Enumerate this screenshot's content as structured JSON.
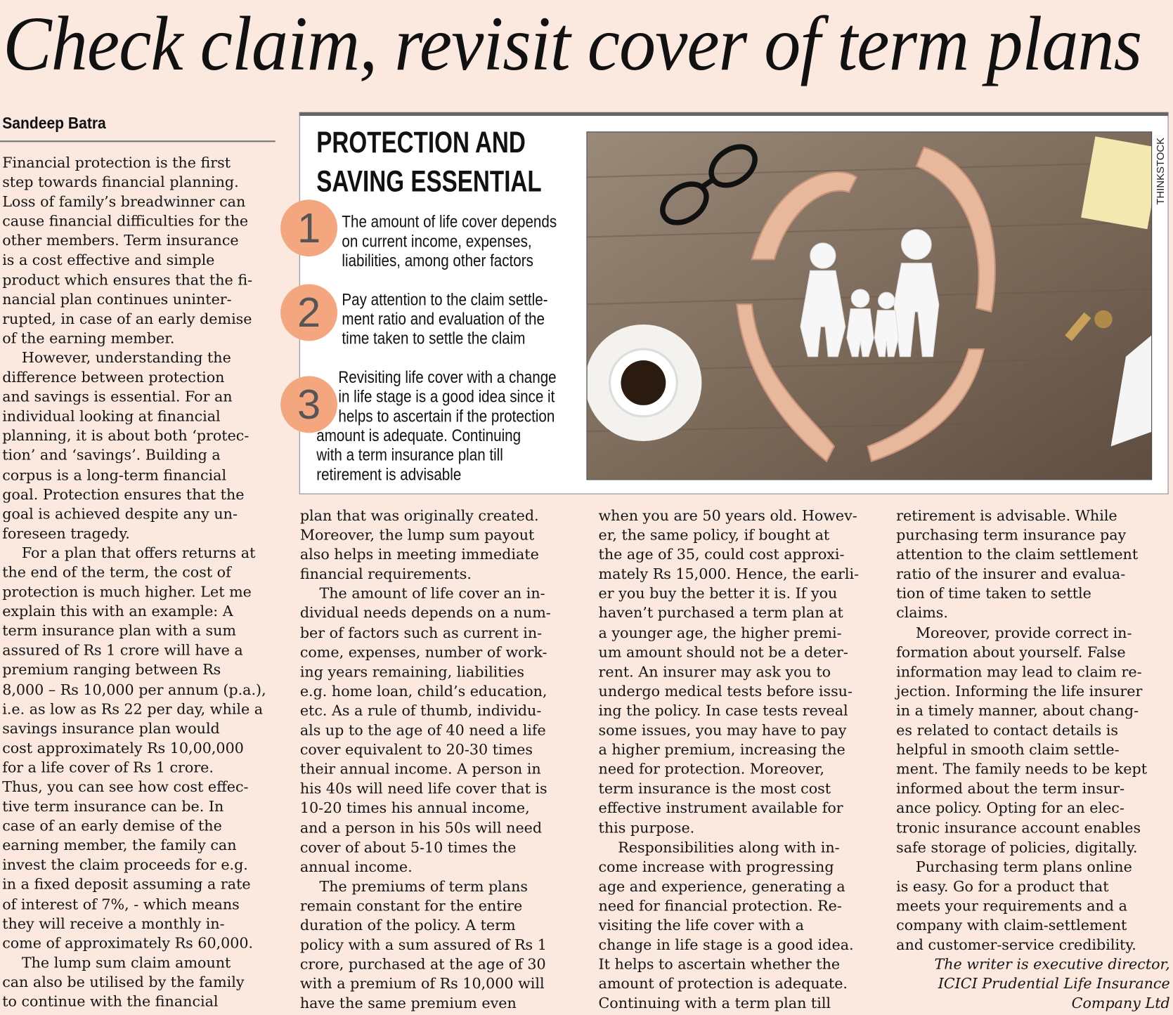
{
  "headline": "Check claim, revisit cover of term plans",
  "byline": "Sandeep Batra",
  "infobox": {
    "heading_lines": [
      "PROTECTION  AND",
      "SAVING ESSENTIAL"
    ],
    "accent_color": "#f4a77f",
    "items": [
      {
        "number": "1",
        "lines": [
          "The amount of life cover depends",
          "on current income, expenses,",
          "liabilities, among other factors"
        ]
      },
      {
        "number": "2",
        "lines": [
          "Pay attention to the claim settle-",
          "ment ratio and evaluation of the",
          "time taken to settle the claim"
        ]
      },
      {
        "number": "3",
        "lines": [
          "Revisiting life cover with a change",
          " in life stage is a good idea since it",
          " helps to ascertain if the protection",
          "amount is adequate. Continuing",
          "with a term insurance plan till",
          "retirement is advisable"
        ]
      }
    ],
    "photo_credit": "THINKSTOCK"
  },
  "columns": [
    [
      {
        "t": "Financial protection is the first"
      },
      {
        "t": "step towards financial planning."
      },
      {
        "t": "Loss of family’s breadwinner can"
      },
      {
        "t": "cause financial difficulties for the"
      },
      {
        "t": "other members. Term insurance"
      },
      {
        "t": "is a cost effective and simple"
      },
      {
        "t": "product which ensures that the fi-"
      },
      {
        "t": "nancial plan continues uninter-"
      },
      {
        "t": "rupted, in case of  an early demise"
      },
      {
        "t": "of  the earning member."
      },
      {
        "t": "However, understanding the",
        "i": true
      },
      {
        "t": "difference between protection"
      },
      {
        "t": "and savings is essential. For an"
      },
      {
        "t": "individual looking at financial"
      },
      {
        "t": "planning, it is about both ‘protec-"
      },
      {
        "t": "tion’ and ‘savings’. Building a"
      },
      {
        "t": "corpus is a long-term financial"
      },
      {
        "t": "goal. Protection ensures that the"
      },
      {
        "t": "goal is achieved despite any un-"
      },
      {
        "t": "foreseen tragedy."
      },
      {
        "t": "For a plan that offers returns at",
        "i": true
      },
      {
        "t": "the end of  the term, the cost of"
      },
      {
        "t": "protection is much higher. Let me"
      },
      {
        "t": "explain this with an example: A"
      },
      {
        "t": "term insurance plan with a sum"
      },
      {
        "t": "assured of  Rs 1 crore will have a"
      },
      {
        "t": "premium ranging between Rs"
      },
      {
        "t": "8,000 – Rs 10,000 per annum (p.a.),"
      },
      {
        "t": "i.e. as low as Rs 22 per day, while a"
      },
      {
        "t": "savings insurance plan would"
      },
      {
        "t": "cost approximately Rs 10,00,000"
      },
      {
        "t": "for a life cover of  Rs 1 crore."
      },
      {
        "t": "Thus, you can see how cost effec-"
      },
      {
        "t": "tive term insurance can be. In"
      },
      {
        "t": "case of  an early demise of  the"
      },
      {
        "t": "earning member, the family can"
      },
      {
        "t": "invest the claim proceeds for e.g."
      },
      {
        "t": "in a fixed deposit assuming a rate"
      },
      {
        "t": "of  interest of  7%, - which means"
      },
      {
        "t": "they will receive a monthly in-"
      },
      {
        "t": "come of  approximately Rs 60,000."
      },
      {
        "t": "The lump sum claim amount",
        "i": true
      },
      {
        "t": "can also be utilised by the family"
      },
      {
        "t": "to continue with the financial"
      }
    ],
    [
      {
        "t": "plan that was originally created."
      },
      {
        "t": "Moreover, the lump sum payout"
      },
      {
        "t": "also helps in meeting immediate"
      },
      {
        "t": "financial requirements."
      },
      {
        "t": "The amount of life cover an in-",
        "i": true
      },
      {
        "t": "dividual needs depends on a num-"
      },
      {
        "t": "ber of factors such as current in-"
      },
      {
        "t": "come, expenses, number of  work-"
      },
      {
        "t": "ing years remaining, liabilities"
      },
      {
        "t": "e.g. home loan, child’s education,"
      },
      {
        "t": "etc. As a rule of  thumb, individu-"
      },
      {
        "t": "als up to the age of  40 need a life"
      },
      {
        "t": "cover equivalent to 20-30 times"
      },
      {
        "t": "their annual income. A person in"
      },
      {
        "t": "his 40s will need life cover that is"
      },
      {
        "t": "10-20 times his annual income,"
      },
      {
        "t": "and a person in his 50s will need"
      },
      {
        "t": "cover of  about 5-10 times the"
      },
      {
        "t": "annual income."
      },
      {
        "t": "The premiums of  term plans",
        "i": true
      },
      {
        "t": "remain constant for the entire"
      },
      {
        "t": "duration of  the policy. A term"
      },
      {
        "t": "policy with a sum assured of  Rs 1"
      },
      {
        "t": "crore, purchased at the age of  30"
      },
      {
        "t": "with a premium of  Rs 10,000 will"
      },
      {
        "t": "have the same premium even"
      }
    ],
    [
      {
        "t": "when you are 50 years old. Howev-"
      },
      {
        "t": "er, the same policy, if  bought at"
      },
      {
        "t": "the age of  35, could cost approxi-"
      },
      {
        "t": "mately Rs 15,000. Hence, the earli-"
      },
      {
        "t": "er you buy the better it is. If  you"
      },
      {
        "t": "haven’t purchased a term plan at"
      },
      {
        "t": "a younger age, the higher premi-"
      },
      {
        "t": "um amount should not be a deter-"
      },
      {
        "t": "rent. An insurer may ask you to"
      },
      {
        "t": "undergo medical tests before issu-"
      },
      {
        "t": "ing the policy. In case tests reveal"
      },
      {
        "t": "some issues, you may have to pay"
      },
      {
        "t": "a higher premium, increasing the"
      },
      {
        "t": "need for protection. Moreover,"
      },
      {
        "t": "term insurance is the most cost"
      },
      {
        "t": "effective instrument available for"
      },
      {
        "t": "this purpose."
      },
      {
        "t": "Responsibilities along with in-",
        "i": true
      },
      {
        "t": "come increase with progressing"
      },
      {
        "t": "age and experience, generating a"
      },
      {
        "t": "need for financial protection. Re-"
      },
      {
        "t": "visiting the life cover with a"
      },
      {
        "t": "change in life stage is a good idea."
      },
      {
        "t": "It helps to ascertain whether the"
      },
      {
        "t": "amount of  protection is adequate."
      },
      {
        "t": "Continuing with a term plan till"
      }
    ],
    [
      {
        "t": "retirement is advisable. While"
      },
      {
        "t": "purchasing term insurance pay"
      },
      {
        "t": "attention to the claim settlement"
      },
      {
        "t": "ratio of  the insurer and evalua-"
      },
      {
        "t": "tion of  time taken to settle"
      },
      {
        "t": "claims."
      },
      {
        "t": "Moreover, provide correct in-",
        "i": true
      },
      {
        "t": "formation about yourself. False"
      },
      {
        "t": "information may lead to claim re-"
      },
      {
        "t": "jection. Informing the life insurer"
      },
      {
        "t": "in a timely manner, about chang-"
      },
      {
        "t": "es related to contact details is"
      },
      {
        "t": "helpful in smooth claim settle-"
      },
      {
        "t": "ment. The family needs to be kept"
      },
      {
        "t": "informed about the term insur-"
      },
      {
        "t": "ance policy. Opting for an elec-"
      },
      {
        "t": "tronic insurance account enables"
      },
      {
        "t": "safe storage of  policies, digitally."
      },
      {
        "t": "Purchasing term plans online",
        "i": true
      },
      {
        "t": "is easy. Go for a product that"
      },
      {
        "t": "meets your requirements and a"
      },
      {
        "t": "company with claim-settlement"
      },
      {
        "t": "and customer-service credibility."
      }
    ]
  ],
  "writer_note": [
    "The writer is executive director,",
    "ICICI Prudential Life Insurance",
    "Company Ltd"
  ]
}
